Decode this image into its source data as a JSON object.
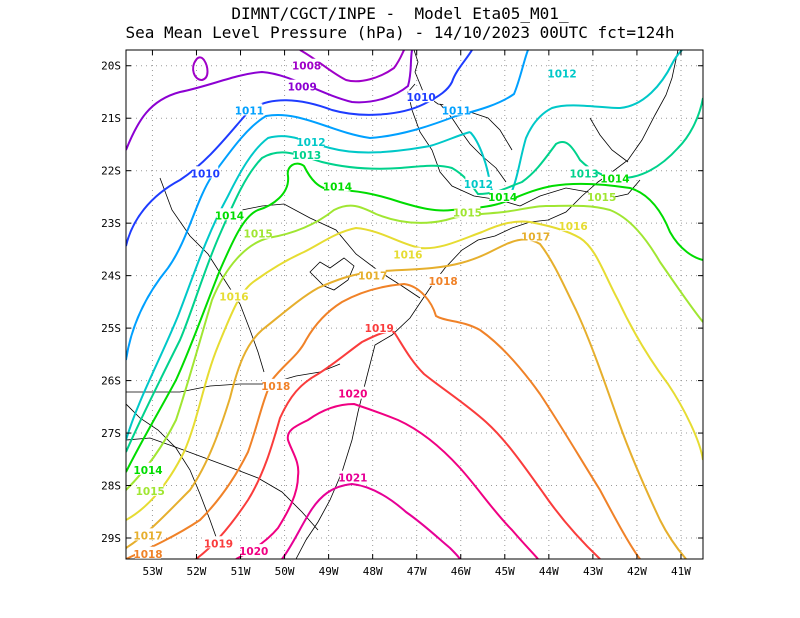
{
  "title": {
    "line1": "DIMNT/CGCT/INPE -  Model Eta05_M01_",
    "line2": "Sea Mean Level Pressure (hPa) - 14/10/2023 00UTC fct=124h"
  },
  "chart_data": {
    "type": "contour",
    "variable": "Sea Mean Level Pressure",
    "units": "hPa",
    "model": "Eta05_M01_",
    "init": "14/10/2023 00UTC",
    "forecast_hour": 124,
    "lon_range": [
      -53.6,
      -40.5
    ],
    "lat_range": [
      -29.4,
      -19.7
    ],
    "x_tick_labels": [
      "53W",
      "52W",
      "51W",
      "50W",
      "49W",
      "48W",
      "47W",
      "46W",
      "45W",
      "44W",
      "43W",
      "42W",
      "41W"
    ],
    "y_tick_labels": [
      "20S",
      "21S",
      "22S",
      "23S",
      "24S",
      "25S",
      "26S",
      "27S",
      "28S",
      "29S"
    ],
    "levels": [
      {
        "value": 1008,
        "label": "1008",
        "color": "#a000c8"
      },
      {
        "value": 1009,
        "label": "1009",
        "color": "#8c00d2"
      },
      {
        "value": 1010,
        "label": "1010",
        "color": "#1e3cff"
      },
      {
        "value": 1011,
        "label": "1011",
        "color": "#00a0ff"
      },
      {
        "value": 1012,
        "label": "1012",
        "color": "#00c8c8"
      },
      {
        "value": 1013,
        "label": "1013",
        "color": "#00d28c"
      },
      {
        "value": 1014,
        "label": "1014",
        "color": "#00dc00"
      },
      {
        "value": 1015,
        "label": "1015",
        "color": "#a0e632"
      },
      {
        "value": 1016,
        "label": "1016",
        "color": "#e6dc32"
      },
      {
        "value": 1017,
        "label": "1017",
        "color": "#e6af2d"
      },
      {
        "value": 1018,
        "label": "1018",
        "color": "#f08228"
      },
      {
        "value": 1019,
        "label": "1019",
        "color": "#fa3c3c"
      },
      {
        "value": 1020,
        "label": "1020",
        "color": "#f00082"
      },
      {
        "value": 1021,
        "label": "1021",
        "color": "#e60096"
      }
    ],
    "contour_labels": [
      {
        "text": "1008",
        "lon": -49.5,
        "lat": -20.0,
        "level": 1008
      },
      {
        "text": "1009",
        "lon": -49.6,
        "lat": -20.4,
        "level": 1009
      },
      {
        "text": "1010",
        "lon": -46.9,
        "lat": -20.6,
        "level": 1010
      },
      {
        "text": "1010",
        "lon": -51.8,
        "lat": -22.05,
        "level": 1010
      },
      {
        "text": "1011",
        "lon": -50.8,
        "lat": -20.85,
        "level": 1011
      },
      {
        "text": "1011",
        "lon": -46.1,
        "lat": -20.85,
        "level": 1011
      },
      {
        "text": "1012",
        "lon": -49.4,
        "lat": -21.45,
        "level": 1012
      },
      {
        "text": "1012",
        "lon": -43.7,
        "lat": -20.15,
        "level": 1012
      },
      {
        "text": "1012",
        "lon": -45.6,
        "lat": -22.25,
        "level": 1012
      },
      {
        "text": "1013",
        "lon": -49.5,
        "lat": -21.7,
        "level": 1013
      },
      {
        "text": "1013",
        "lon": -43.2,
        "lat": -22.05,
        "level": 1013
      },
      {
        "text": "1014",
        "lon": -48.8,
        "lat": -22.3,
        "level": 1014
      },
      {
        "text": "1014",
        "lon": -51.25,
        "lat": -22.85,
        "level": 1014
      },
      {
        "text": "1014",
        "lon": -45.05,
        "lat": -22.5,
        "level": 1014
      },
      {
        "text": "1014",
        "lon": -42.5,
        "lat": -22.15,
        "level": 1014
      },
      {
        "text": "1014",
        "lon": -53.1,
        "lat": -27.7,
        "level": 1014
      },
      {
        "text": "1015",
        "lon": -50.6,
        "lat": -23.2,
        "level": 1015
      },
      {
        "text": "1015",
        "lon": -45.85,
        "lat": -22.8,
        "level": 1015
      },
      {
        "text": "1015",
        "lon": -42.8,
        "lat": -22.5,
        "level": 1015
      },
      {
        "text": "1015",
        "lon": -53.05,
        "lat": -28.1,
        "level": 1015
      },
      {
        "text": "1016",
        "lon": -51.15,
        "lat": -24.4,
        "level": 1016
      },
      {
        "text": "1016",
        "lon": -47.2,
        "lat": -23.6,
        "level": 1016
      },
      {
        "text": "1016",
        "lon": -43.45,
        "lat": -23.05,
        "level": 1016
      },
      {
        "text": "1017",
        "lon": -48.0,
        "lat": -24.0,
        "level": 1017
      },
      {
        "text": "1017",
        "lon": -44.3,
        "lat": -23.25,
        "level": 1017
      },
      {
        "text": "1017",
        "lon": -53.1,
        "lat": -28.95,
        "level": 1017
      },
      {
        "text": "1018",
        "lon": -46.4,
        "lat": -24.1,
        "level": 1018
      },
      {
        "text": "1018",
        "lon": -50.2,
        "lat": -26.1,
        "level": 1018
      },
      {
        "text": "1018",
        "lon": -53.1,
        "lat": -29.3,
        "level": 1018
      },
      {
        "text": "1019",
        "lon": -47.85,
        "lat": -25.0,
        "level": 1019
      },
      {
        "text": "1019",
        "lon": -51.5,
        "lat": -29.1,
        "level": 1019
      },
      {
        "text": "1020",
        "lon": -48.45,
        "lat": -26.25,
        "level": 1020
      },
      {
        "text": "1020",
        "lon": -50.7,
        "lat": -29.25,
        "level": 1020
      },
      {
        "text": "1021",
        "lon": -48.45,
        "lat": -27.85,
        "level": 1021
      }
    ]
  }
}
